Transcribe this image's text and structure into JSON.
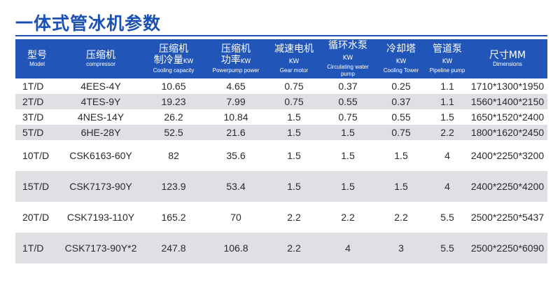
{
  "title": "一体式管冰机参数",
  "headers": [
    {
      "zh": "型号",
      "zh2": "",
      "unit": "",
      "en": "Model"
    },
    {
      "zh": "压缩机",
      "zh2": "",
      "unit": "",
      "en": "compressor"
    },
    {
      "zh": "压缩机",
      "zh2": "制冷量",
      "unit": "KW",
      "en": "Cooling capacity"
    },
    {
      "zh": "压缩机",
      "zh2": "功率",
      "unit": "KW",
      "en": "Powerpump power"
    },
    {
      "zh": "减速电机",
      "zh2": "",
      "unit": "KW",
      "en": "Gear motor"
    },
    {
      "zh": "循环水泵",
      "zh2": "",
      "unit": "KW",
      "en": "Circulating water pump"
    },
    {
      "zh": "冷却塔",
      "zh2": "",
      "unit": "KW",
      "en": "Cooling Tower"
    },
    {
      "zh": "管道泵",
      "zh2": "",
      "unit": "KW",
      "en": "Pipeline pump"
    },
    {
      "zh": "尺寸MM",
      "zh2": "",
      "unit": "",
      "en": "Dimensions"
    }
  ],
  "rows": [
    [
      "1T/D",
      "4EES-4Y",
      "10.65",
      "4.65",
      "0.75",
      "0.37",
      "0.25",
      "1.1",
      "1710*1300*1950"
    ],
    [
      "2T/D",
      "4TES-9Y",
      "19.23",
      "7.99",
      "0.75",
      "0.55",
      "0.37",
      "1.1",
      "1560*1400*2150"
    ],
    [
      "3T/D",
      "4NES-14Y",
      "26.2",
      "10.84",
      "1.5",
      "0.75",
      "0.55",
      "1.5",
      "1650*1520*2400"
    ],
    [
      "5T/D",
      "6HE-28Y",
      "52.5",
      "21.6",
      "1.5",
      "1.5",
      "0.75",
      "2.2",
      "1800*1620*2450"
    ],
    [
      "10T/D",
      "CSK6163-60Y",
      "82",
      "35.6",
      "1.5",
      "1.5",
      "1.5",
      "4",
      "2400*2250*3200"
    ],
    [
      "15T/D",
      "CSK7173-90Y",
      "123.9",
      "53.4",
      "1.5",
      "1.5",
      "1.5",
      "4",
      "2400*2250*4200"
    ],
    [
      "20T/D",
      "CSK7193-110Y",
      "165.2",
      "70",
      "2.2",
      "2.2",
      "2.2",
      "5.5",
      "2500*2250*5437"
    ],
    [
      "1T/D",
      "CSK7173-90Y*2",
      "247.8",
      "106.8",
      "2.2",
      "4",
      "3",
      "5.5",
      "2500*2250*6090"
    ]
  ],
  "colors": {
    "header_bg": "#2156b8",
    "title": "#1c51b4",
    "alt_row": "#dfe0e4"
  }
}
